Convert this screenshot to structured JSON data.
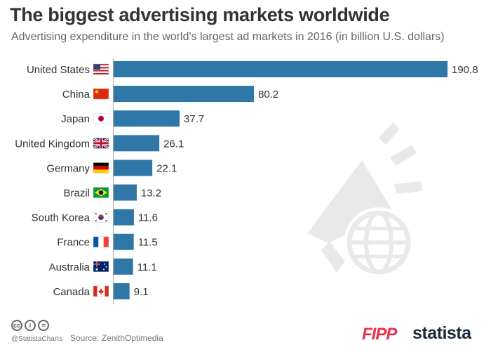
{
  "title": "The biggest advertising markets worldwide",
  "subtitle": "Advertising expenditure in the world's largest ad markets in 2016 (in billion U.S. dollars)",
  "footer": {
    "handle": "@StatistaCharts",
    "source": "Source: ZenithOptimedia",
    "logo_fipp": "FIPP",
    "logo_statista": "statista"
  },
  "colors": {
    "bar": "#2e77a6",
    "title": "#333333",
    "watermark": "#e9e9e9"
  },
  "chart_data": {
    "type": "bar",
    "orientation": "horizontal",
    "title": "The biggest advertising markets worldwide",
    "subtitle": "Advertising expenditure in the world's largest ad markets in 2016 (in billion U.S. dollars)",
    "categories": [
      "United States",
      "China",
      "Japan",
      "United Kingdom",
      "Germany",
      "Brazil",
      "South Korea",
      "France",
      "Australia",
      "Canada"
    ],
    "values": [
      190.8,
      80.2,
      37.7,
      26.1,
      22.1,
      13.2,
      11.6,
      11.5,
      11.1,
      9.1
    ],
    "value_labels": [
      "190.8",
      "80.2",
      "37.7",
      "26.1",
      "22.1",
      "13.2",
      "11.6",
      "11.5",
      "11.1",
      "9.1"
    ],
    "flags": [
      "us-flag-icon",
      "china-flag-icon",
      "japan-flag-icon",
      "uk-flag-icon",
      "germany-flag-icon",
      "brazil-flag-icon",
      "south-korea-flag-icon",
      "france-flag-icon",
      "australia-flag-icon",
      "canada-flag-icon"
    ],
    "xlim": [
      0,
      190.8
    ],
    "grid": false,
    "legend": "none"
  }
}
